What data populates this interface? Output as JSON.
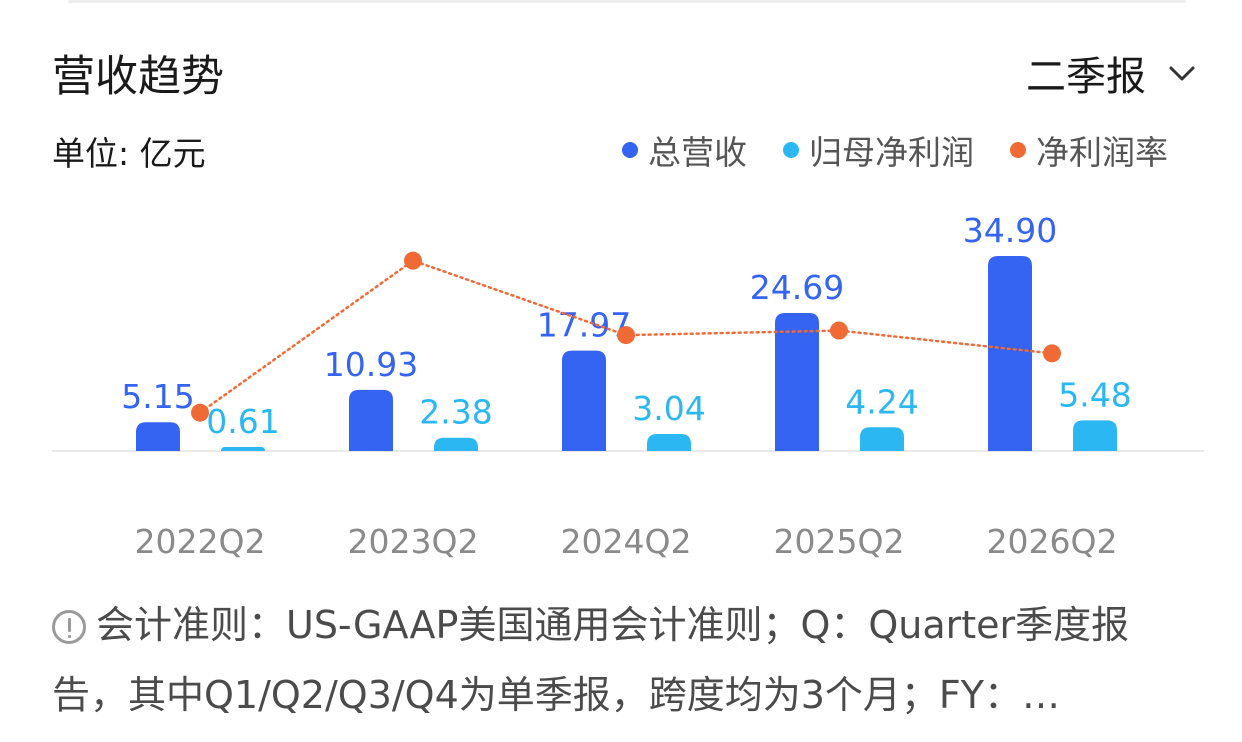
{
  "header": {
    "title": "营收趋势",
    "period_selector": "二季报",
    "unit": "单位: 亿元"
  },
  "legend": [
    {
      "label": "总营收",
      "color": "#3563f2"
    },
    {
      "label": "归母净利润",
      "color": "#2bb8f2"
    },
    {
      "label": "净利润率",
      "color": "#f06a36"
    }
  ],
  "chart_data": {
    "type": "bar",
    "categories": [
      "2022Q2",
      "2023Q2",
      "2024Q2",
      "2025Q2",
      "2026Q2"
    ],
    "series": [
      {
        "name": "总营收",
        "type": "bar",
        "color": "#3563f2",
        "values": [
          5.15,
          10.93,
          17.97,
          24.69,
          34.9
        ]
      },
      {
        "name": "归母净利润",
        "type": "bar",
        "color": "#2bb8f2",
        "values": [
          0.61,
          2.38,
          3.04,
          4.24,
          5.48
        ]
      },
      {
        "name": "净利润率",
        "type": "line",
        "color": "#f06a36",
        "values": [
          11.8,
          21.8,
          16.9,
          17.2,
          15.7
        ]
      }
    ],
    "value_labels": {
      "总营收": [
        "5.15",
        "10.93",
        "17.97",
        "24.69",
        "34.90"
      ],
      "归母净利润": [
        "0.61",
        "2.38",
        "3.04",
        "4.24",
        "5.48"
      ]
    },
    "ylim": [
      0,
      35
    ],
    "grid": false,
    "legend_position": "top-right"
  },
  "footnote": {
    "text": "会计准则：US-GAAP美国通用会计准则；Q：Quarter季度报告，其中Q1/Q2/Q3/Q4为单季报，跨度均为3个月；FY：…",
    "icon": "info-icon"
  }
}
